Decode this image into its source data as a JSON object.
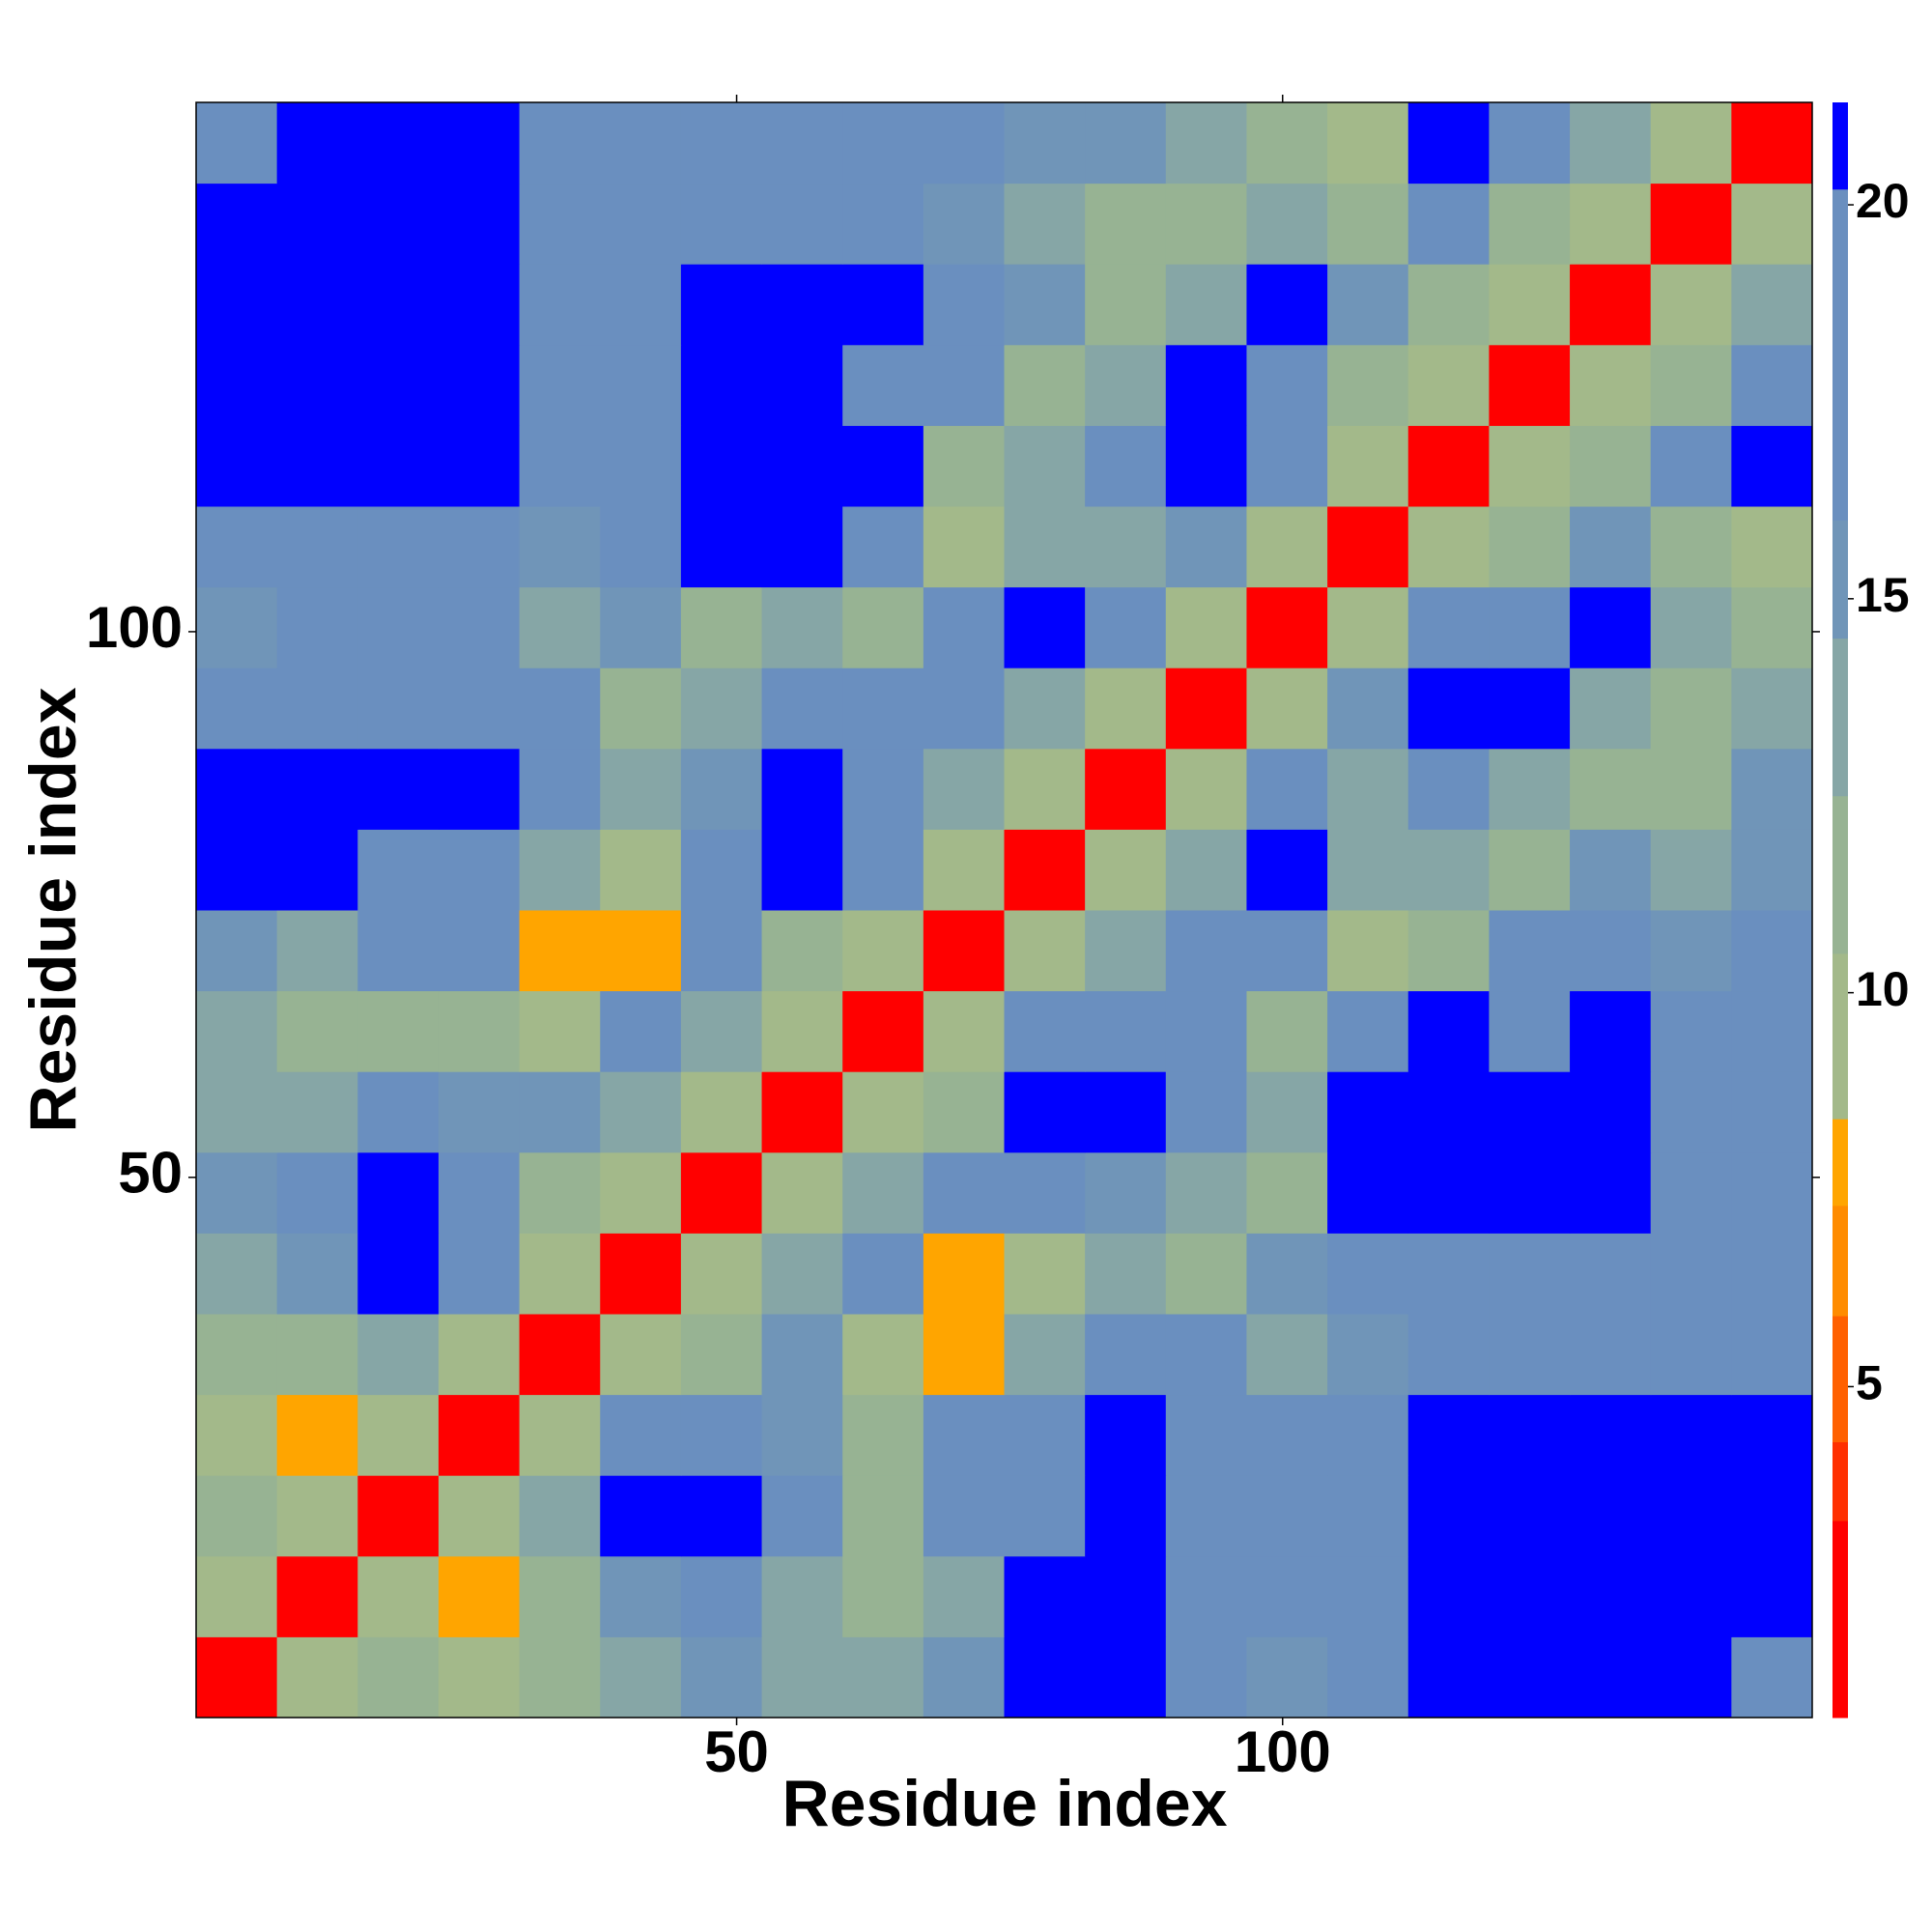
{
  "chart_data": {
    "type": "heatmap",
    "xlabel": "Residue index",
    "ylabel": "Residue index",
    "xlim": [
      0.5,
      148.5
    ],
    "ylim": [
      0.5,
      148.5
    ],
    "xticks": [
      50,
      100
    ],
    "yticks": [
      50,
      100
    ],
    "clim": [
      0.8,
      21.3
    ],
    "cticks": [
      5,
      10,
      15,
      20
    ],
    "color_levels": [
      0.8,
      3.3,
      4.3,
      5.9,
      7.3,
      8.4,
      10.5,
      12.5,
      14.5,
      16,
      20.2,
      21.3
    ],
    "colors": [
      "#ff0000",
      "#ff3000",
      "#ff6000",
      "#ff8c00",
      "#ffa500",
      "#a3b98a",
      "#97b393",
      "#86a6a6",
      "#7095b8",
      "#6a8fbf",
      "#0000ff"
    ],
    "z": [
      [
        2,
        9,
        12,
        9,
        11,
        14,
        15,
        14,
        14,
        15,
        21,
        21,
        20,
        15,
        19,
        21,
        21,
        21,
        21,
        20
      ],
      [
        9,
        2,
        9,
        8,
        11,
        15,
        17,
        13,
        12,
        14,
        21,
        21,
        19,
        17,
        20,
        21,
        21,
        21,
        21,
        21
      ],
      [
        12,
        9,
        2,
        9,
        14,
        21,
        21,
        16,
        12,
        16,
        20,
        21,
        20,
        17,
        17,
        21,
        21,
        21,
        21,
        21
      ],
      [
        9,
        8,
        9,
        2,
        9,
        17,
        16,
        15,
        12,
        17,
        17,
        21,
        20,
        16,
        16,
        21,
        21,
        21,
        21,
        21
      ],
      [
        11,
        11,
        14,
        9,
        2,
        9,
        12,
        15,
        9,
        8,
        14,
        16,
        16,
        14,
        15,
        17,
        18,
        18,
        17,
        17
      ],
      [
        14,
        15,
        21,
        17,
        9,
        2,
        9,
        13,
        20,
        8,
        10,
        14,
        12,
        15,
        16,
        18,
        17,
        20,
        17,
        18
      ],
      [
        15,
        17,
        21,
        16,
        12,
        9,
        2,
        9,
        14,
        16,
        16,
        15,
        14,
        12,
        21,
        21,
        21,
        21,
        18,
        16
      ],
      [
        14,
        13,
        16,
        15,
        15,
        13,
        9,
        2,
        9,
        12,
        21,
        21,
        17,
        14,
        21,
        21,
        21,
        21,
        19,
        19
      ],
      [
        14,
        12,
        12,
        12,
        9,
        20,
        14,
        9,
        2,
        9,
        20,
        19,
        20,
        11,
        16,
        21,
        20,
        21,
        16,
        18
      ],
      [
        15,
        14,
        16,
        17,
        8,
        8,
        16,
        12,
        9,
        2,
        9,
        13,
        17,
        16,
        9,
        12,
        16,
        18,
        15,
        16
      ],
      [
        21,
        21,
        20,
        17,
        14,
        10,
        16,
        21,
        20,
        9,
        2,
        9,
        14,
        21,
        14,
        13,
        12,
        15,
        14,
        15
      ],
      [
        21,
        21,
        21,
        21,
        16,
        14,
        15,
        21,
        19,
        13,
        9,
        2,
        9,
        16,
        13,
        17,
        13,
        12,
        12,
        15
      ],
      [
        20,
        19,
        20,
        20,
        16,
        12,
        14,
        17,
        20,
        17,
        14,
        9,
        2,
        9,
        15,
        21,
        21,
        14,
        11,
        14
      ],
      [
        15,
        17,
        17,
        16,
        14,
        15,
        12,
        14,
        11,
        16,
        21,
        16,
        9,
        2,
        9,
        20,
        20,
        21,
        14,
        12
      ],
      [
        19,
        20,
        17,
        16,
        15,
        16,
        21,
        21,
        16,
        9,
        14,
        13,
        15,
        9,
        2,
        9,
        12,
        15,
        12,
        10
      ],
      [
        21,
        21,
        21,
        21,
        17,
        18,
        21,
        21,
        21,
        12,
        13,
        17,
        21,
        20,
        9,
        2,
        9,
        12,
        19,
        21
      ],
      [
        21,
        21,
        21,
        21,
        18,
        17,
        21,
        21,
        20,
        16,
        12,
        13,
        21,
        20,
        12,
        9,
        2,
        9,
        12,
        17
      ],
      [
        21,
        21,
        21,
        21,
        18,
        20,
        21,
        21,
        21,
        18,
        15,
        12,
        14,
        21,
        15,
        12,
        9,
        2,
        9,
        13
      ],
      [
        21,
        21,
        21,
        21,
        17,
        17,
        18,
        19,
        16,
        15,
        14,
        12,
        11,
        14,
        12,
        19,
        12,
        9,
        2,
        9
      ],
      [
        20,
        21,
        21,
        21,
        17,
        18,
        16,
        19,
        18,
        16,
        15,
        15,
        14,
        12,
        10,
        21,
        17,
        13,
        9,
        2
      ]
    ]
  }
}
